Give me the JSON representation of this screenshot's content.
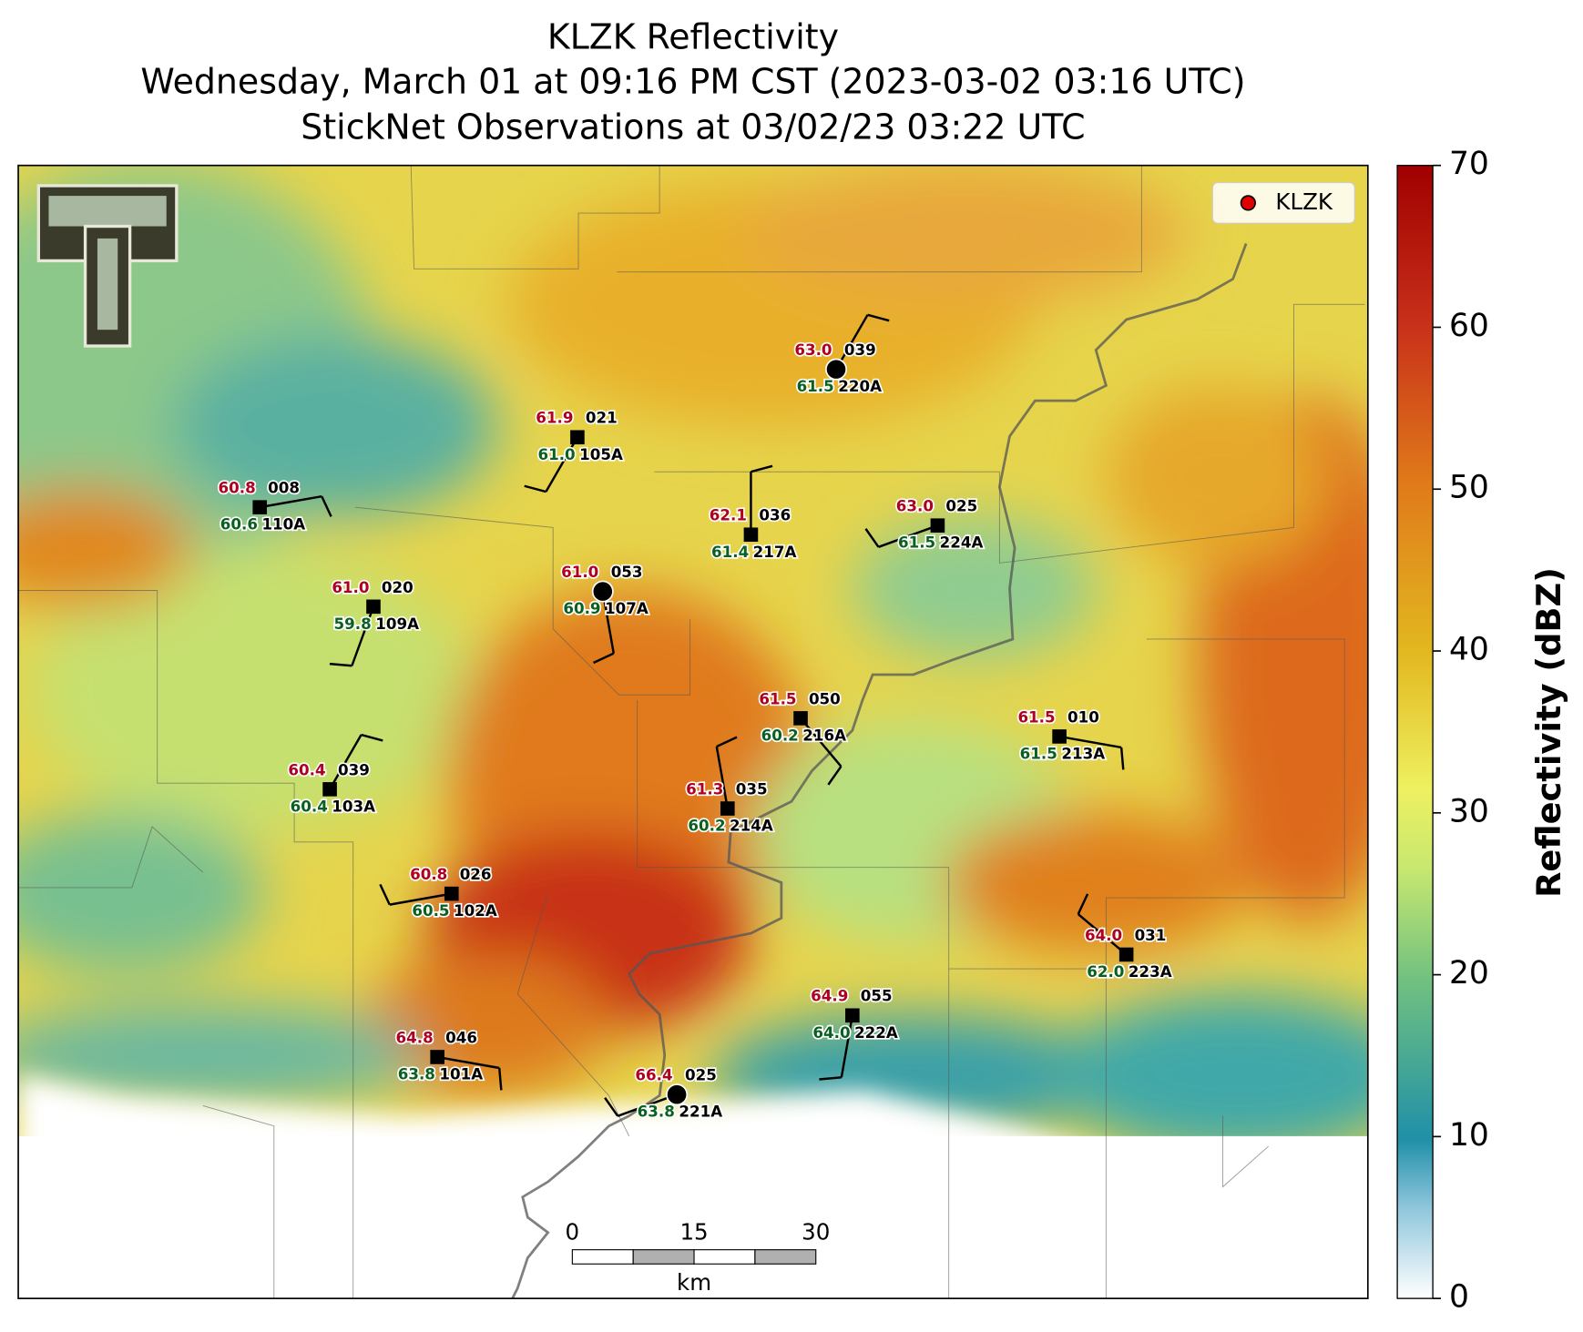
{
  "header": {
    "title": [
      "KLZK Reflectivity",
      "Wednesday, March 01 at 09:16 PM CST (2023-03-02 03:16 UTC)",
      "StickNet Observations at 03/02/23 03:22 UTC"
    ]
  },
  "colorbar": {
    "label": "Reflectivity (dBZ)",
    "lim": [
      0,
      70
    ],
    "ticks": [
      0,
      10,
      20,
      30,
      40,
      50,
      60,
      70
    ]
  },
  "legend": {
    "label": "KLZK",
    "color": "#e00000"
  },
  "scale_bar": {
    "ticks": [
      0,
      15,
      30
    ],
    "unit": "km"
  },
  "stations": [
    {
      "id": "110A",
      "temperature": "60.8",
      "dewpoint": "60.6",
      "wind_dir": "008"
    },
    {
      "id": "109A",
      "temperature": "61.0",
      "dewpoint": "59.8",
      "wind_dir": "020"
    },
    {
      "id": "105A",
      "temperature": "61.9",
      "dewpoint": "61.0",
      "wind_dir": "021"
    },
    {
      "id": "107A",
      "temperature": "61.0",
      "dewpoint": "60.9",
      "wind_dir": "053"
    },
    {
      "id": "220A",
      "temperature": "63.0",
      "dewpoint": "61.5",
      "wind_dir": "039"
    },
    {
      "id": "217A",
      "temperature": "62.1",
      "dewpoint": "61.4",
      "wind_dir": "036"
    },
    {
      "id": "224A",
      "temperature": "63.0",
      "dewpoint": "61.5",
      "wind_dir": "025"
    },
    {
      "id": "216A",
      "temperature": "61.5",
      "dewpoint": "60.2",
      "wind_dir": "050"
    },
    {
      "id": "213A",
      "temperature": "61.5",
      "dewpoint": "61.5",
      "wind_dir": "010"
    },
    {
      "id": "103A",
      "temperature": "60.4",
      "dewpoint": "60.4",
      "wind_dir": "039"
    },
    {
      "id": "214A",
      "temperature": "61.3",
      "dewpoint": "60.2",
      "wind_dir": "035"
    },
    {
      "id": "102A",
      "temperature": "60.8",
      "dewpoint": "60.5",
      "wind_dir": "026"
    },
    {
      "id": "223A",
      "temperature": "64.0",
      "dewpoint": "62.0",
      "wind_dir": "031"
    },
    {
      "id": "222A",
      "temperature": "64.9",
      "dewpoint": "64.0",
      "wind_dir": "055"
    },
    {
      "id": "101A",
      "temperature": "64.8",
      "dewpoint": "63.8",
      "wind_dir": "046"
    },
    {
      "id": "221A",
      "temperature": "66.4",
      "dewpoint": "63.8",
      "wind_dir": "025"
    }
  ]
}
